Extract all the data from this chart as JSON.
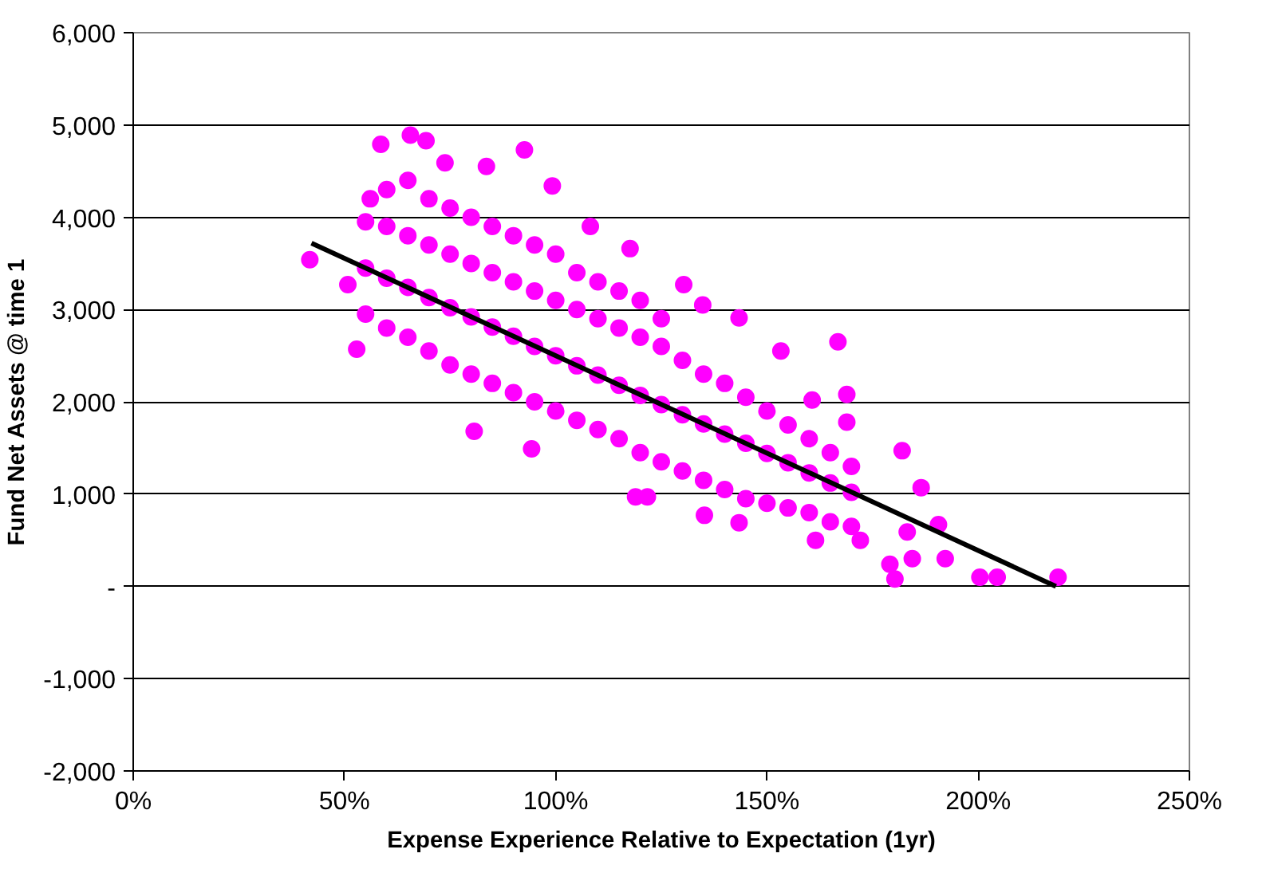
{
  "chart_data": {
    "type": "scatter",
    "xlabel": "Expense Experience Relative to Expectation (1yr)",
    "ylabel": "Fund Net Assets @ time 1",
    "xlim": [
      0,
      250
    ],
    "xticks": [
      {
        "value": 0,
        "label": "0%"
      },
      {
        "value": 50,
        "label": "50%"
      },
      {
        "value": 100,
        "label": "100%"
      },
      {
        "value": 150,
        "label": "150%"
      },
      {
        "value": 200,
        "label": "200%"
      },
      {
        "value": 250,
        "label": "250%"
      }
    ],
    "ylim": [
      -2000,
      6000
    ],
    "yticks": [
      {
        "value": -2000,
        "label": "-2,000"
      },
      {
        "value": -1000,
        "label": "-1,000"
      },
      {
        "value": 0,
        "label": "-"
      },
      {
        "value": 1000,
        "label": "1,000"
      },
      {
        "value": 2000,
        "label": "2,000"
      },
      {
        "value": 3000,
        "label": "3,000"
      },
      {
        "value": 4000,
        "label": "4,000"
      },
      {
        "value": 5000,
        "label": "5,000"
      },
      {
        "value": 6000,
        "label": "6,000"
      }
    ],
    "grid": "y",
    "marker": "circle",
    "series": [
      {
        "color": "#ff00ff",
        "x": [
          41.8,
          58.6,
          65.6,
          69.3,
          92.6,
          99.2,
          108.2,
          117.6,
          52.9,
          50.8,
          80.7,
          94.3,
          118.9,
          56.1,
          73.8,
          83.6,
          130.3,
          134.8,
          143.4,
          153.3,
          166.8,
          160.7,
          168.9,
          168.9,
          182.0,
          186.5,
          190.6,
          184.4,
          179.1,
          180.3,
          192.2,
          200.4,
          204.5,
          218.9,
          135.2,
          143.4,
          161.5,
          172.1,
          183.2,
          121.7,
          55,
          55,
          55,
          60,
          60,
          60,
          60,
          65,
          65,
          65,
          65,
          70,
          70,
          70,
          70,
          75,
          75,
          75,
          75,
          80,
          80,
          80,
          80,
          85,
          85,
          85,
          85,
          90,
          90,
          90,
          90,
          95,
          95,
          95,
          95,
          100,
          100,
          100,
          100,
          105,
          105,
          105,
          105,
          110,
          110,
          110,
          110,
          115,
          115,
          115,
          115,
          120,
          120,
          120,
          120,
          125,
          125,
          125,
          125,
          130,
          130,
          130,
          135,
          135,
          135,
          140,
          140,
          140,
          145,
          145,
          145,
          150,
          150,
          150,
          155,
          155,
          155,
          160,
          160,
          160,
          165,
          165,
          165,
          170,
          170,
          170
        ],
        "values": [
          3540,
          4790,
          4890,
          4830,
          4730,
          4340,
          3900,
          3660,
          2570,
          3270,
          1680,
          1490,
          970,
          4200,
          4590,
          4550,
          3270,
          3050,
          2910,
          2550,
          2650,
          2020,
          2080,
          1780,
          1470,
          1070,
          670,
          300,
          240,
          80,
          300,
          100,
          100,
          100,
          770,
          690,
          500,
          500,
          590,
          970,
          3450,
          2950,
          3950,
          3340,
          2800,
          3900,
          4300,
          3240,
          2700,
          3800,
          4400,
          3130,
          2550,
          3700,
          4200,
          3020,
          2400,
          3600,
          4100,
          2920,
          2300,
          3500,
          4000,
          2810,
          2200,
          3400,
          3900,
          2710,
          2100,
          3300,
          3800,
          2600,
          2000,
          3200,
          3700,
          2500,
          1900,
          3100,
          3600,
          2390,
          1800,
          3000,
          3400,
          2290,
          1700,
          2900,
          3300,
          2180,
          1600,
          2800,
          3200,
          2070,
          1450,
          2700,
          3100,
          1970,
          1350,
          2600,
          2900,
          1860,
          1250,
          2450,
          1760,
          1150,
          2300,
          1650,
          1050,
          2200,
          1550,
          950,
          2050,
          1440,
          900,
          1900,
          1340,
          850,
          1750,
          1230,
          800,
          1600,
          1120,
          700,
          1450,
          1020,
          650,
          1300
        ]
      },
      {
        "type": "line",
        "color": "#000000",
        "marker": "none",
        "x": [
          42.2,
          218.4
        ],
        "values": [
          3720,
          0
        ]
      }
    ]
  }
}
